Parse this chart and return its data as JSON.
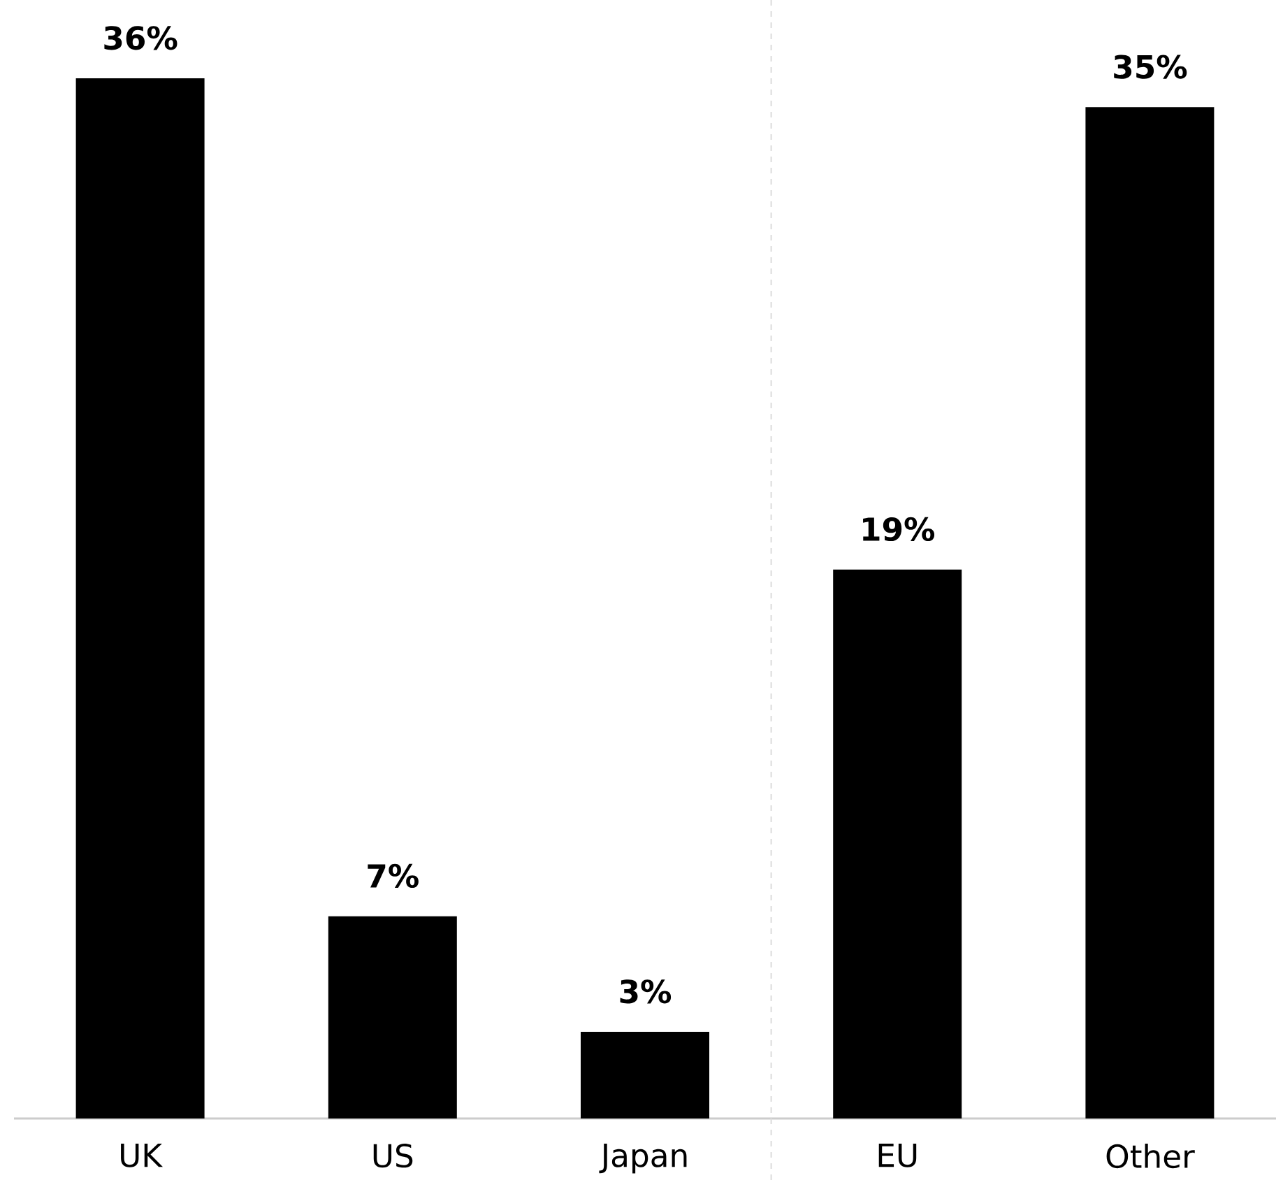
{
  "chart_data": {
    "type": "bar",
    "categories": [
      "UK",
      "US",
      "Japan",
      "EU",
      "Other"
    ],
    "values": [
      36,
      7,
      3,
      19,
      35
    ],
    "value_labels": [
      "36%",
      "7%",
      "3%",
      "19%",
      "35%"
    ],
    "color": "#000000"
  }
}
